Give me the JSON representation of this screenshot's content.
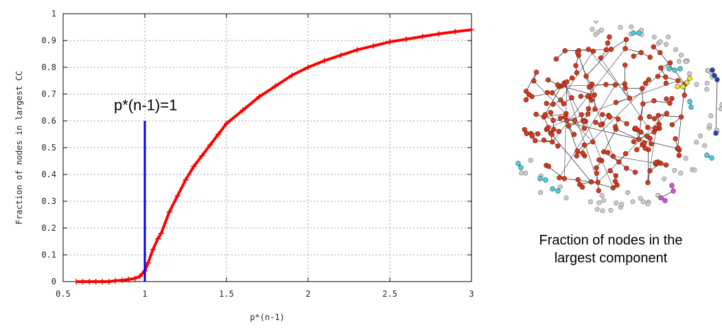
{
  "chart_data": {
    "type": "scatter",
    "title": "",
    "xlabel": "p*(n-1)",
    "ylabel": "Fraction of nodes in largest CC",
    "xlim": [
      0.5,
      3
    ],
    "ylim": [
      0,
      1
    ],
    "xticks": [
      "0.5",
      "1",
      "1.5",
      "2",
      "2.5",
      "3"
    ],
    "yticks": [
      "0",
      "0.1",
      "0.2",
      "0.3",
      "0.4",
      "0.5",
      "0.6",
      "0.7",
      "0.8",
      "0.9",
      "1"
    ],
    "grid": true,
    "series": [
      {
        "color": "#ff0000",
        "marker": "plus",
        "x": [
          0.58,
          0.62,
          0.66,
          0.7,
          0.74,
          0.78,
          0.82,
          0.86,
          0.9,
          0.94,
          0.97,
          1.0,
          1.02,
          1.05,
          1.08,
          1.1,
          1.15,
          1.2,
          1.25,
          1.3,
          1.35,
          1.4,
          1.45,
          1.5,
          1.6,
          1.7,
          1.8,
          1.9,
          2.0,
          2.1,
          2.2,
          2.3,
          2.4,
          2.5,
          2.6,
          2.7,
          2.8,
          2.9,
          3.0
        ],
        "y": [
          0.0,
          0.0,
          0.0,
          0.0,
          0.0,
          0.0,
          0.003,
          0.005,
          0.008,
          0.012,
          0.02,
          0.04,
          0.07,
          0.12,
          0.16,
          0.18,
          0.26,
          0.32,
          0.38,
          0.43,
          0.47,
          0.51,
          0.55,
          0.59,
          0.64,
          0.69,
          0.73,
          0.77,
          0.8,
          0.825,
          0.845,
          0.865,
          0.88,
          0.895,
          0.905,
          0.915,
          0.925,
          0.933,
          0.94
        ]
      }
    ],
    "vline": {
      "x": 1.0,
      "y_top": 0.6,
      "color": "#0000ff"
    },
    "annotation": {
      "text": "p*(n-1)=1",
      "x": 1.0,
      "y": 0.64
    }
  },
  "network": {
    "caption_line1": "Fraction of nodes in the",
    "caption_line2": "largest component",
    "colors": {
      "giant": "#d23a1e",
      "isolated": "#cccccc",
      "cyan": "#3fd3dd",
      "yellow": "#f2e418",
      "blue": "#1f3fbf",
      "magenta": "#d94bd8"
    }
  }
}
